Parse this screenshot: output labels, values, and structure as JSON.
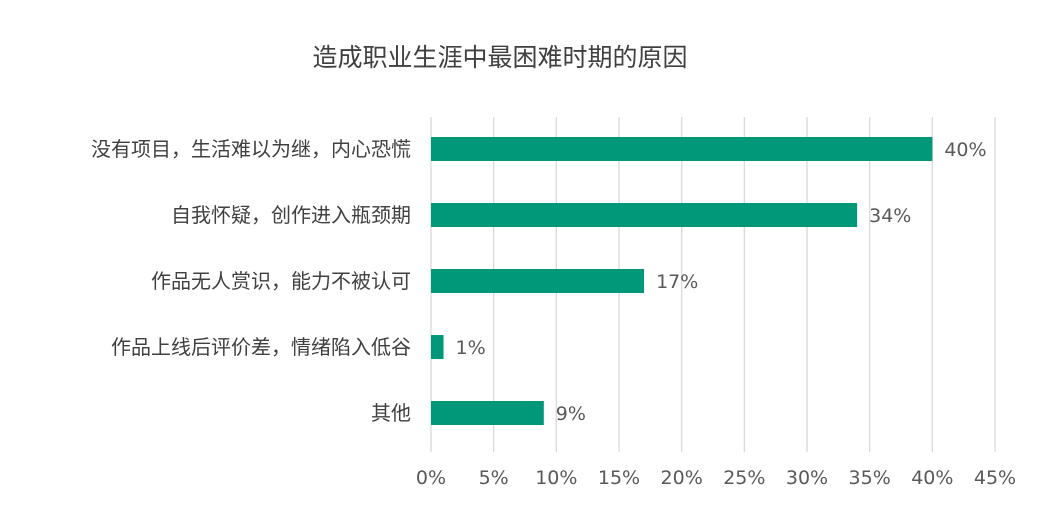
{
  "chart_data": {
    "type": "bar",
    "orientation": "horizontal",
    "title": "造成职业生涯中最困难时期的原因",
    "categories": [
      "没有项目，生活难以为继，内心恐慌",
      "自我怀疑，创作进入瓶颈期",
      "作品无人赏识，能力不被认可",
      "作品上线后评价差，情绪陷入低谷",
      "其他"
    ],
    "values": [
      40,
      34,
      17,
      1,
      9
    ],
    "data_labels": [
      "40%",
      "34%",
      "17%",
      "1%",
      "9%"
    ],
    "xlim": [
      0,
      45
    ],
    "x_ticks": [
      0,
      5,
      10,
      15,
      20,
      25,
      30,
      35,
      40,
      45
    ],
    "x_tick_labels": [
      "0%",
      "5%",
      "10%",
      "15%",
      "20%",
      "25%",
      "30%",
      "35%",
      "40%",
      "45%"
    ],
    "xlabel": "",
    "ylabel": "",
    "grid": "vertical",
    "legend": "none",
    "bar_color": "#009878",
    "grid_color": "#d9d9d9"
  }
}
